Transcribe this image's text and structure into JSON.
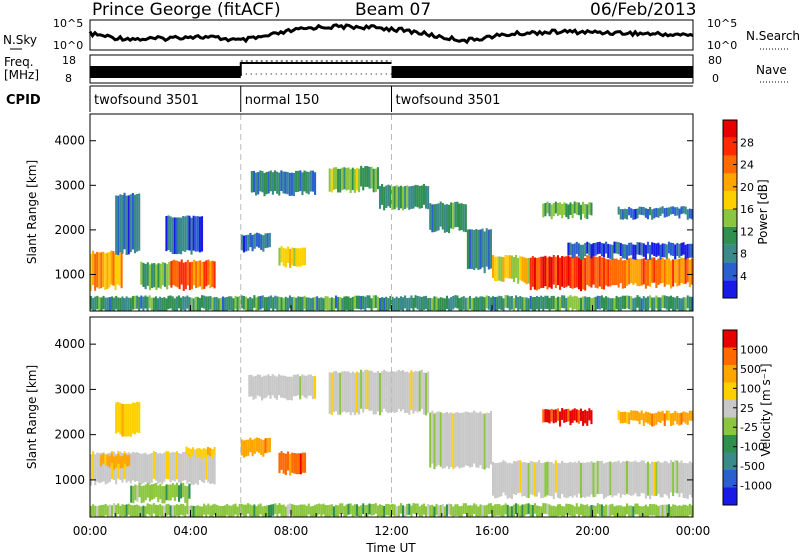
{
  "header": {
    "station": "Prince George (fitACF)",
    "beam": "Beam 07",
    "date": "06/Feb/2013"
  },
  "chart_data": [
    {
      "type": "line",
      "name_label": "N.Sky",
      "right_label": "N.Search",
      "left_ticks": [
        "10^5",
        "10^0"
      ],
      "right_ticks": [
        "10^5",
        "10^0"
      ],
      "x_hours": [
        0,
        1,
        2,
        3,
        4,
        5,
        6,
        7,
        8,
        9,
        10,
        11,
        12,
        13,
        14,
        15,
        16,
        17,
        18,
        19,
        20,
        21,
        22,
        23,
        24
      ],
      "y_level": [
        0.55,
        0.4,
        0.35,
        0.38,
        0.45,
        0.4,
        0.3,
        0.45,
        0.65,
        0.78,
        0.8,
        0.78,
        0.72,
        0.6,
        0.42,
        0.3,
        0.45,
        0.55,
        0.6,
        0.62,
        0.6,
        0.58,
        0.55,
        0.52,
        0.5
      ]
    },
    {
      "type": "bar",
      "label_top": "Freq.",
      "label_bottom": "[MHz]",
      "left_ticks": [
        "18",
        "8"
      ],
      "right_ticks": [
        "80",
        "0"
      ],
      "right_label": "Nave",
      "segments": [
        {
          "start": 0,
          "end": 6,
          "mode": "solid"
        },
        {
          "start": 6,
          "end": 12,
          "mode": "sparse"
        },
        {
          "start": 12,
          "end": 24,
          "mode": "solid"
        }
      ]
    },
    {
      "type": "table",
      "label": "CPID",
      "programs": [
        {
          "start": 0,
          "end": 6,
          "name": "twofsound 3501"
        },
        {
          "start": 6,
          "end": 12,
          "name": "normal 150"
        },
        {
          "start": 12,
          "end": 24,
          "name": "twofsound 3501"
        }
      ]
    },
    {
      "type": "heatmap",
      "parameter": "power",
      "ylabel": "Slant Range [km]",
      "yticks": [
        1000,
        2000,
        3000,
        4000
      ],
      "ylim": [
        180,
        4600
      ],
      "colorbar_label": "Power [dB]",
      "colorbar_ticks": [
        4,
        8,
        12,
        16,
        20,
        24,
        28
      ],
      "colorbar_range": [
        0,
        32
      ],
      "colors": [
        "#1a1ae6",
        "#2a5fd0",
        "#3a8a8a",
        "#2f8f4f",
        "#8cc63f",
        "#ffd000",
        "#ffa500",
        "#ff6a00",
        "#ff2a00",
        "#e60000"
      ],
      "regions": [
        {
          "t0": 0.0,
          "t1": 1.3,
          "r0": 700,
          "r1": 1500,
          "v": 22
        },
        {
          "t0": 1.0,
          "t1": 2.0,
          "r0": 1500,
          "r1": 2800,
          "v": 6
        },
        {
          "t0": 2.0,
          "t1": 3.2,
          "r0": 700,
          "r1": 1250,
          "v": 12
        },
        {
          "t0": 3.2,
          "t1": 5.0,
          "r0": 700,
          "r1": 1300,
          "v": 25
        },
        {
          "t0": 3.0,
          "t1": 4.5,
          "r0": 1500,
          "r1": 2300,
          "v": 5
        },
        {
          "t0": 6.4,
          "t1": 9.0,
          "r0": 2800,
          "r1": 3300,
          "v": 8
        },
        {
          "t0": 6.0,
          "t1": 7.2,
          "r0": 1550,
          "r1": 1900,
          "v": 5
        },
        {
          "t0": 7.5,
          "t1": 8.6,
          "r0": 1200,
          "r1": 1600,
          "v": 18
        },
        {
          "t0": 9.5,
          "t1": 11.5,
          "r0": 2900,
          "r1": 3400,
          "v": 13
        },
        {
          "t0": 11.5,
          "t1": 13.5,
          "r0": 2500,
          "r1": 3000,
          "v": 10
        },
        {
          "t0": 13.5,
          "t1": 15.0,
          "r0": 2000,
          "r1": 2600,
          "v": 9
        },
        {
          "t0": 15.0,
          "t1": 16.0,
          "r0": 1100,
          "r1": 2000,
          "v": 8
        },
        {
          "t0": 16.0,
          "t1": 17.5,
          "r0": 850,
          "r1": 1400,
          "v": 18
        },
        {
          "t0": 17.5,
          "t1": 20.5,
          "r0": 700,
          "r1": 1400,
          "v": 27
        },
        {
          "t0": 20.5,
          "t1": 24.0,
          "r0": 750,
          "r1": 1350,
          "v": 23
        },
        {
          "t0": 19.0,
          "t1": 24.0,
          "r0": 1400,
          "r1": 1700,
          "v": 4
        },
        {
          "t0": 18.0,
          "t1": 20.0,
          "r0": 2300,
          "r1": 2600,
          "v": 12
        },
        {
          "t0": 21.0,
          "t1": 24.0,
          "r0": 2300,
          "r1": 2500,
          "v": 6
        },
        {
          "t0": 0.0,
          "t1": 24.0,
          "r0": 180,
          "r1": 500,
          "v": 10
        }
      ]
    },
    {
      "type": "heatmap",
      "parameter": "velocity",
      "ylabel": "Slant Range [km]",
      "yticks": [
        1000,
        2000,
        3000,
        4000
      ],
      "ylim": [
        180,
        4600
      ],
      "xlabel": "Time UT",
      "xticks": [
        "00:00",
        "04:00",
        "08:00",
        "12:00",
        "16:00",
        "20:00",
        "00:00"
      ],
      "colorbar_label": "Velocity [m s⁻¹]",
      "colorbar_ticks": [
        "1000",
        "500",
        "100",
        "25",
        "-25",
        "-100",
        "-500",
        "-1000"
      ],
      "colors": [
        "#1a1ae6",
        "#2a5fd0",
        "#3a8a8a",
        "#2f8f4f",
        "#8cc63f",
        "#c8c8c8",
        "#ffd000",
        "#ffa500",
        "#ff6a00",
        "#e60000"
      ],
      "regions": [
        {
          "t0": 0.0,
          "t1": 5.0,
          "r0": 950,
          "r1": 1600,
          "c": 5
        },
        {
          "t0": 1.6,
          "t1": 4.0,
          "r0": 550,
          "r1": 900,
          "c": 4
        },
        {
          "t0": 3.8,
          "t1": 5.0,
          "r0": 1500,
          "r1": 1700,
          "c": 6
        },
        {
          "t0": 0.4,
          "t1": 1.6,
          "r0": 1300,
          "r1": 1550,
          "c": 7
        },
        {
          "t0": 1.0,
          "t1": 2.0,
          "r0": 2000,
          "r1": 2700,
          "c": 6
        },
        {
          "t0": 6.3,
          "t1": 9.0,
          "r0": 2800,
          "r1": 3300,
          "c": 5
        },
        {
          "t0": 6.0,
          "t1": 7.2,
          "r0": 1550,
          "r1": 1900,
          "c": 7
        },
        {
          "t0": 7.5,
          "t1": 8.6,
          "r0": 1150,
          "r1": 1600,
          "c": 8
        },
        {
          "t0": 9.5,
          "t1": 13.5,
          "r0": 2500,
          "r1": 3400,
          "c": 5
        },
        {
          "t0": 13.5,
          "t1": 16.0,
          "r0": 1300,
          "r1": 2500,
          "c": 5
        },
        {
          "t0": 16.0,
          "t1": 24.0,
          "r0": 650,
          "r1": 1400,
          "c": 5
        },
        {
          "t0": 18.0,
          "t1": 20.0,
          "r0": 2250,
          "r1": 2550,
          "c": 9
        },
        {
          "t0": 21.0,
          "t1": 24.0,
          "r0": 2250,
          "r1": 2500,
          "c": 7
        },
        {
          "t0": 0.0,
          "t1": 24.0,
          "r0": 180,
          "r1": 450,
          "c": 4
        }
      ]
    }
  ]
}
